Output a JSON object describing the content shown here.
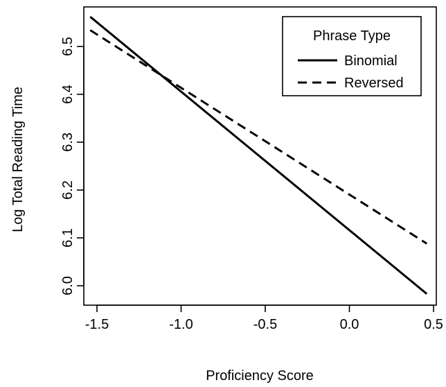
{
  "chart_data": {
    "type": "line",
    "title": "",
    "xlabel": "Proficiency Score",
    "ylabel": "Log Total Reading Time",
    "xlim": [
      -1.5,
      0.5
    ],
    "ylim": [
      6.0,
      6.5
    ],
    "xticks": [
      -1.5,
      -1.0,
      -0.5,
      0.0,
      0.5
    ],
    "xtick_labels": [
      "-1.5",
      "-1.0",
      "-0.5",
      "0.0",
      "0.5"
    ],
    "yticks": [
      6.0,
      6.1,
      6.2,
      6.3,
      6.4,
      6.5
    ],
    "ytick_labels": [
      "6.0",
      "6.1",
      "6.2",
      "6.3",
      "6.4",
      "6.5"
    ],
    "grid": false,
    "legend": {
      "title": "Phrase Type",
      "position": "top-right"
    },
    "series": [
      {
        "name": "Binomial",
        "style": "solid",
        "color": "#000000",
        "x": [
          -1.54,
          0.46
        ],
        "y": [
          6.562,
          5.983
        ]
      },
      {
        "name": "Reversed",
        "style": "dashed",
        "color": "#000000",
        "x": [
          -1.54,
          0.46
        ],
        "y": [
          6.534,
          6.088
        ]
      }
    ]
  }
}
